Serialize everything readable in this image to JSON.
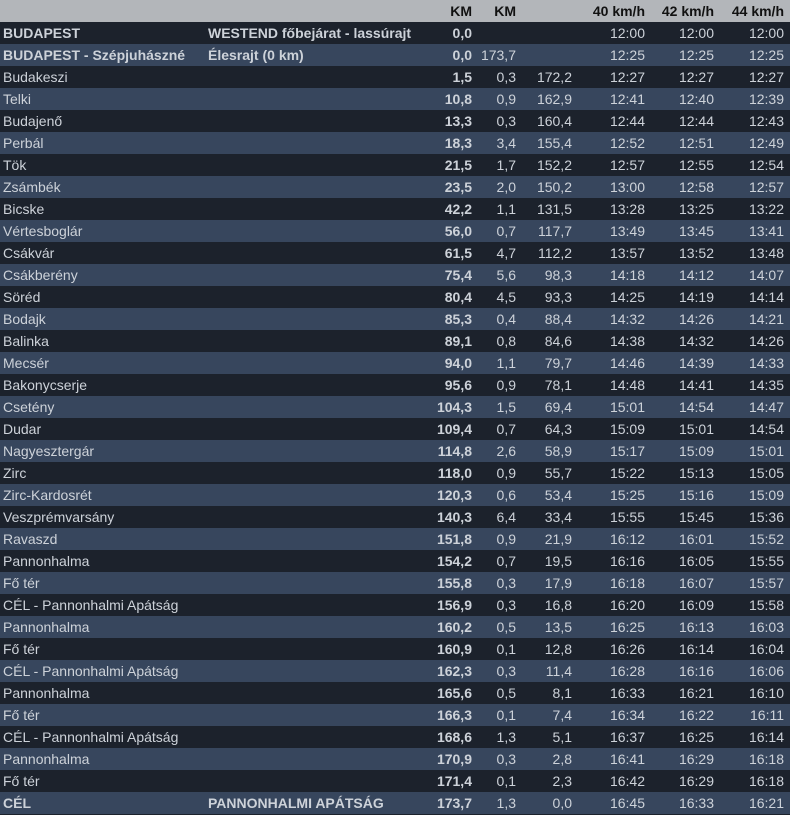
{
  "header": {
    "km": "KM",
    "km2": "KM",
    "t40": "40 km/h",
    "t42": "42 km/h",
    "t44": "44 km/h"
  },
  "colors": {
    "header_bg": "#b3b6ba",
    "row_dark": "#1c222c",
    "row_light": "#37465d",
    "text": "#cdd2d9"
  },
  "rows": [
    {
      "name": "BUDAPEST",
      "desc": "WESTEND főbejárat - lassúrajt",
      "km": "0,0",
      "seg": "",
      "rem": "",
      "t40": "12:00",
      "t42": "12:00",
      "t44": "12:00",
      "bold": true
    },
    {
      "name": "BUDAPEST - Szépjuhászné",
      "desc": "Élesrajt (0 km)",
      "km": "0,0",
      "seg": "173,7",
      "rem": "",
      "t40": "12:25",
      "t42": "12:25",
      "t44": "12:25",
      "bold": true
    },
    {
      "name": "Budakeszi",
      "desc": "",
      "km": "1,5",
      "seg": "0,3",
      "rem": "172,2",
      "t40": "12:27",
      "t42": "12:27",
      "t44": "12:27"
    },
    {
      "name": "Telki",
      "desc": "",
      "km": "10,8",
      "seg": "0,9",
      "rem": "162,9",
      "t40": "12:41",
      "t42": "12:40",
      "t44": "12:39"
    },
    {
      "name": "Budajenő",
      "desc": "",
      "km": "13,3",
      "seg": "0,3",
      "rem": "160,4",
      "t40": "12:44",
      "t42": "12:44",
      "t44": "12:43"
    },
    {
      "name": "Perbál",
      "desc": "",
      "km": "18,3",
      "seg": "3,4",
      "rem": "155,4",
      "t40": "12:52",
      "t42": "12:51",
      "t44": "12:49"
    },
    {
      "name": "Tök",
      "desc": "",
      "km": "21,5",
      "seg": "1,7",
      "rem": "152,2",
      "t40": "12:57",
      "t42": "12:55",
      "t44": "12:54"
    },
    {
      "name": "Zsámbék",
      "desc": "",
      "km": "23,5",
      "seg": "2,0",
      "rem": "150,2",
      "t40": "13:00",
      "t42": "12:58",
      "t44": "12:57"
    },
    {
      "name": "Bicske",
      "desc": "",
      "km": "42,2",
      "seg": "1,1",
      "rem": "131,5",
      "t40": "13:28",
      "t42": "13:25",
      "t44": "13:22"
    },
    {
      "name": "Vértesboglár",
      "desc": "",
      "km": "56,0",
      "seg": "0,7",
      "rem": "117,7",
      "t40": "13:49",
      "t42": "13:45",
      "t44": "13:41"
    },
    {
      "name": "Csákvár",
      "desc": "",
      "km": "61,5",
      "seg": "4,7",
      "rem": "112,2",
      "t40": "13:57",
      "t42": "13:52",
      "t44": "13:48"
    },
    {
      "name": "Csákberény",
      "desc": "",
      "km": "75,4",
      "seg": "5,6",
      "rem": "98,3",
      "t40": "14:18",
      "t42": "14:12",
      "t44": "14:07"
    },
    {
      "name": "Söréd",
      "desc": "",
      "km": "80,4",
      "seg": "4,5",
      "rem": "93,3",
      "t40": "14:25",
      "t42": "14:19",
      "t44": "14:14"
    },
    {
      "name": "Bodajk",
      "desc": "",
      "km": "85,3",
      "seg": "0,4",
      "rem": "88,4",
      "t40": "14:32",
      "t42": "14:26",
      "t44": "14:21"
    },
    {
      "name": "Balinka",
      "desc": "",
      "km": "89,1",
      "seg": "0,8",
      "rem": "84,6",
      "t40": "14:38",
      "t42": "14:32",
      "t44": "14:26"
    },
    {
      "name": "Mecsér",
      "desc": "",
      "km": "94,0",
      "seg": "1,1",
      "rem": "79,7",
      "t40": "14:46",
      "t42": "14:39",
      "t44": "14:33"
    },
    {
      "name": "Bakonycserje",
      "desc": "",
      "km": "95,6",
      "seg": "0,9",
      "rem": "78,1",
      "t40": "14:48",
      "t42": "14:41",
      "t44": "14:35"
    },
    {
      "name": "Csetény",
      "desc": "",
      "km": "104,3",
      "seg": "1,5",
      "rem": "69,4",
      "t40": "15:01",
      "t42": "14:54",
      "t44": "14:47"
    },
    {
      "name": "Dudar",
      "desc": "",
      "km": "109,4",
      "seg": "0,7",
      "rem": "64,3",
      "t40": "15:09",
      "t42": "15:01",
      "t44": "14:54"
    },
    {
      "name": "Nagyesztergár",
      "desc": "",
      "km": "114,8",
      "seg": "2,6",
      "rem": "58,9",
      "t40": "15:17",
      "t42": "15:09",
      "t44": "15:01"
    },
    {
      "name": "Zirc",
      "desc": "",
      "km": "118,0",
      "seg": "0,9",
      "rem": "55,7",
      "t40": "15:22",
      "t42": "15:13",
      "t44": "15:05"
    },
    {
      "name": "Zirc-Kardosrét",
      "desc": "",
      "km": "120,3",
      "seg": "0,6",
      "rem": "53,4",
      "t40": "15:25",
      "t42": "15:16",
      "t44": "15:09"
    },
    {
      "name": "Veszprémvarsány",
      "desc": "",
      "km": "140,3",
      "seg": "6,4",
      "rem": "33,4",
      "t40": "15:55",
      "t42": "15:45",
      "t44": "15:36"
    },
    {
      "name": "Ravaszd",
      "desc": "",
      "km": "151,8",
      "seg": "0,9",
      "rem": "21,9",
      "t40": "16:12",
      "t42": "16:01",
      "t44": "15:52"
    },
    {
      "name": "Pannonhalma",
      "desc": "",
      "km": "154,2",
      "seg": "0,7",
      "rem": "19,5",
      "t40": "16:16",
      "t42": "16:05",
      "t44": "15:55"
    },
    {
      "name": "Fő tér",
      "desc": "",
      "km": "155,8",
      "seg": "0,3",
      "rem": "17,9",
      "t40": "16:18",
      "t42": "16:07",
      "t44": "15:57"
    },
    {
      "name": "CÉL - Pannonhalmi Apátság",
      "desc": "",
      "km": "156,9",
      "seg": "0,3",
      "rem": "16,8",
      "t40": "16:20",
      "t42": "16:09",
      "t44": "15:58"
    },
    {
      "name": "Pannonhalma",
      "desc": "",
      "km": "160,2",
      "seg": "0,5",
      "rem": "13,5",
      "t40": "16:25",
      "t42": "16:13",
      "t44": "16:03"
    },
    {
      "name": "Fő tér",
      "desc": "",
      "km": "160,9",
      "seg": "0,1",
      "rem": "12,8",
      "t40": "16:26",
      "t42": "16:14",
      "t44": "16:04"
    },
    {
      "name": "CÉL - Pannonhalmi Apátság",
      "desc": "",
      "km": "162,3",
      "seg": "0,3",
      "rem": "11,4",
      "t40": "16:28",
      "t42": "16:16",
      "t44": "16:06"
    },
    {
      "name": "Pannonhalma",
      "desc": "",
      "km": "165,6",
      "seg": "0,5",
      "rem": "8,1",
      "t40": "16:33",
      "t42": "16:21",
      "t44": "16:10"
    },
    {
      "name": "Fő tér",
      "desc": "",
      "km": "166,3",
      "seg": "0,1",
      "rem": "7,4",
      "t40": "16:34",
      "t42": "16:22",
      "t44": "16:11"
    },
    {
      "name": "CÉL - Pannonhalmi Apátság",
      "desc": "",
      "km": "168,6",
      "seg": "1,3",
      "rem": "5,1",
      "t40": "16:37",
      "t42": "16:25",
      "t44": "16:14"
    },
    {
      "name": "Pannonhalma",
      "desc": "",
      "km": "170,9",
      "seg": "0,3",
      "rem": "2,8",
      "t40": "16:41",
      "t42": "16:29",
      "t44": "16:18"
    },
    {
      "name": "Fő tér",
      "desc": "",
      "km": "171,4",
      "seg": "0,1",
      "rem": "2,3",
      "t40": "16:42",
      "t42": "16:29",
      "t44": "16:18"
    },
    {
      "name": "CÉL",
      "desc": "PANNONHALMI APÁTSÁG",
      "km": "173,7",
      "seg": "1,3",
      "rem": "0,0",
      "t40": "16:45",
      "t42": "16:33",
      "t44": "16:21",
      "bold": true
    }
  ]
}
